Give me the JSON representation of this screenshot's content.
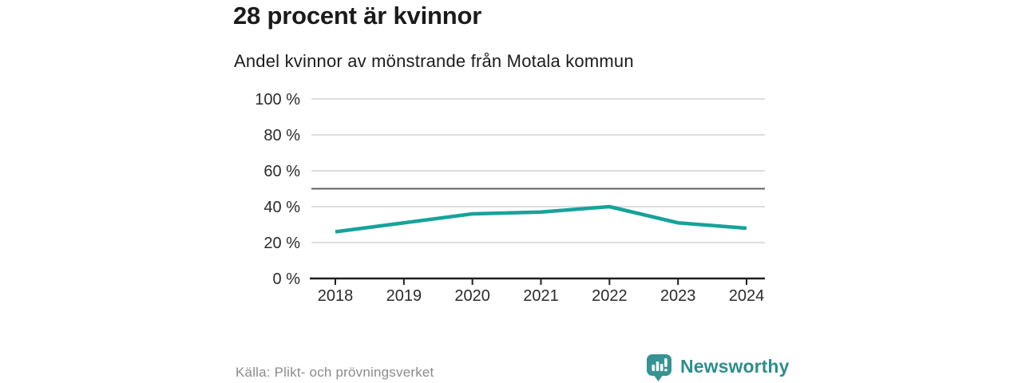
{
  "header": {
    "title": "28 procent är kvinnor",
    "subtitle": "Andel kvinnor av mönstrande från Motala kommun"
  },
  "chart_data": {
    "type": "line",
    "title": "28 procent är kvinnor",
    "subtitle": "Andel kvinnor av mönstrande från Motala kommun",
    "x": [
      "2018",
      "2019",
      "2020",
      "2021",
      "2022",
      "2023",
      "2024"
    ],
    "series": [
      {
        "name": "Andel kvinnor av mönstrande",
        "values": [
          26,
          31,
          36,
          37,
          40,
          31,
          28
        ]
      }
    ],
    "unit": "%",
    "ylim": [
      0,
      100
    ],
    "yticks": [
      0,
      20,
      40,
      60,
      80,
      100
    ],
    "ytick_labels": [
      "0 %",
      "20 %",
      "40 %",
      "60 %",
      "80 %",
      "100 %"
    ],
    "reference_line": 50,
    "grid": true,
    "legend": "none",
    "line_color": "#15a39a"
  },
  "footer": {
    "source": "Källa: Plikt- och prövningsverket",
    "brand": "Newsworthy"
  },
  "colors": {
    "accent": "#15a39a",
    "brand_icon": "#379292",
    "brand_text": "#2e8d8d",
    "gridline": "#dedede",
    "reference_line": "#606060",
    "axis": "#1f1f1f"
  }
}
